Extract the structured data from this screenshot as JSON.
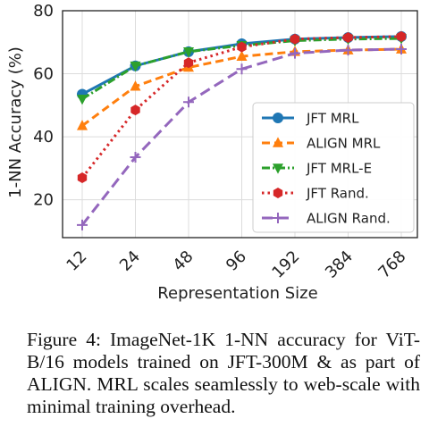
{
  "chart_data": {
    "type": "line",
    "xlabel": "Representation Size",
    "ylabel": "1-NN Accuracy (%)",
    "categories": [
      "12",
      "24",
      "48",
      "96",
      "192",
      "384",
      "768"
    ],
    "ylim": [
      8,
      80
    ],
    "yticks": [
      20,
      40,
      60,
      80
    ],
    "grid": true,
    "legend_position": "bottom-right",
    "series": [
      {
        "name": "JFT MRL",
        "color": "#1f77b4",
        "style": "solid",
        "marker": "circle",
        "values": [
          53.5,
          62.5,
          67.0,
          69.5,
          71.0,
          71.5,
          71.8
        ]
      },
      {
        "name": "ALIGN MRL",
        "color": "#ff7f0e",
        "style": "dashed",
        "marker": "triangle-up",
        "values": [
          43.5,
          56.0,
          62.0,
          65.5,
          67.0,
          67.5,
          67.8
        ]
      },
      {
        "name": "JFT MRL-E",
        "color": "#2ca02c",
        "style": "dashdot",
        "marker": "triangle-down",
        "values": [
          52.0,
          62.5,
          67.0,
          69.0,
          70.5,
          71.0,
          71.2
        ]
      },
      {
        "name": "JFT Rand.",
        "color": "#d62728",
        "style": "dotted",
        "marker": "hexagon",
        "values": [
          27.0,
          48.5,
          63.5,
          68.5,
          71.0,
          71.5,
          71.8
        ]
      },
      {
        "name": "ALIGN Rand.",
        "color": "#9467bd",
        "style": "longdash",
        "marker": "plus",
        "values": [
          12.0,
          33.5,
          51.0,
          61.5,
          66.5,
          67.5,
          67.8
        ]
      }
    ]
  },
  "caption": "Figure 4: ImageNet-1K 1-NN accuracy for ViT-B/16 models trained on JFT-300M & as part of ALIGN. MRL scales seamlessly to web-scale with minimal training overhead."
}
